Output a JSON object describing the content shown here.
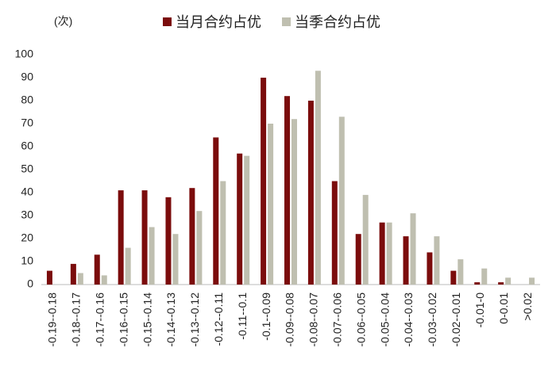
{
  "chart_data": {
    "type": "bar",
    "y_unit_label": "(次)",
    "categories": [
      "-0.19--0.18",
      "-0.18--0.17",
      "-0.17--0.16",
      "-0.16--0.15",
      "-0.15--0.14",
      "-0.14--0.13",
      "-0.13--0.12",
      "-0.12--0.11",
      "-0.11--0.1",
      "-0.1--0.09",
      "-0.09--0.08",
      "-0.08--0.07",
      "-0.07--0.06",
      "-0.06--0.05",
      "-0.05--0.04",
      "-0.04--0.03",
      "-0.03--0.02",
      "-0.02--0.01",
      "-0.01-0",
      "0-0.01",
      ">0.02"
    ],
    "series": [
      {
        "name": "当月合约占优",
        "color": "#7b0c0c",
        "values": [
          6,
          9,
          13,
          41,
          41,
          38,
          42,
          64,
          57,
          90,
          82,
          80,
          45,
          22,
          27,
          21,
          14,
          6,
          1,
          1,
          0
        ]
      },
      {
        "name": "当季合约占优",
        "color": "#bfbfb0",
        "values": [
          0,
          5,
          4,
          16,
          25,
          22,
          32,
          45,
          56,
          70,
          72,
          93,
          73,
          39,
          27,
          31,
          21,
          11,
          7,
          3,
          3
        ]
      }
    ],
    "ylim": [
      0,
      100
    ],
    "yticks": [
      0,
      10,
      20,
      30,
      40,
      50,
      60,
      70,
      80,
      90,
      100
    ],
    "grid": false,
    "legend": "top"
  }
}
